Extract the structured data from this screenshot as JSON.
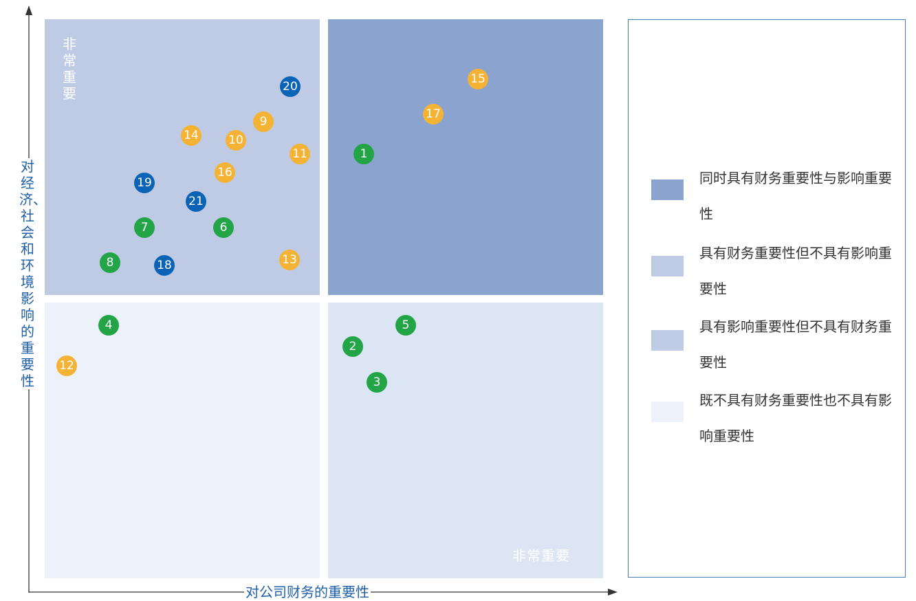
{
  "axes": {
    "y_label": "对经济、社会和环境影响的重要性",
    "x_label": "对公司财务的重要性"
  },
  "quadrant_tags": {
    "vertical": "非常重要",
    "horizontal": "非常重要"
  },
  "colors": {
    "both": "#8ba4cf",
    "financial_only": "#bfcbe5",
    "impact_only": "#bfcbe5",
    "neither": "#ecf1fa",
    "bottom_right": "#dbe5f4",
    "dot_green": "#22a447",
    "dot_orange": "#f5b335",
    "dot_blue": "#0b63b5",
    "axis_label": "#1f5fa8"
  },
  "points": [
    {
      "label": "1",
      "color": "green"
    },
    {
      "label": "2",
      "color": "green"
    },
    {
      "label": "3",
      "color": "green"
    },
    {
      "label": "4",
      "color": "green"
    },
    {
      "label": "5",
      "color": "green"
    },
    {
      "label": "6",
      "color": "green"
    },
    {
      "label": "7",
      "color": "green"
    },
    {
      "label": "8",
      "color": "green"
    },
    {
      "label": "9",
      "color": "orange"
    },
    {
      "label": "10",
      "color": "orange"
    },
    {
      "label": "11",
      "color": "orange"
    },
    {
      "label": "12",
      "color": "orange"
    },
    {
      "label": "13",
      "color": "orange"
    },
    {
      "label": "14",
      "color": "orange"
    },
    {
      "label": "15",
      "color": "orange"
    },
    {
      "label": "16",
      "color": "orange"
    },
    {
      "label": "17",
      "color": "orange"
    },
    {
      "label": "18",
      "color": "blue"
    },
    {
      "label": "19",
      "color": "blue"
    },
    {
      "label": "20",
      "color": "blue"
    },
    {
      "label": "21",
      "color": "blue"
    }
  ],
  "legend": [
    {
      "text": "同时具有财务重要性与影响重要性",
      "color": "#8ba4cf"
    },
    {
      "text": "具有财务重要性但不具有影响重要性",
      "color": "#bfcbe5"
    },
    {
      "text": "具有影响重要性但不具有财务重要性",
      "color": "#bfcbe5"
    },
    {
      "text": "既不具有财务重要性也不具有影响重要性",
      "color": "#ecf1fa"
    }
  ]
}
